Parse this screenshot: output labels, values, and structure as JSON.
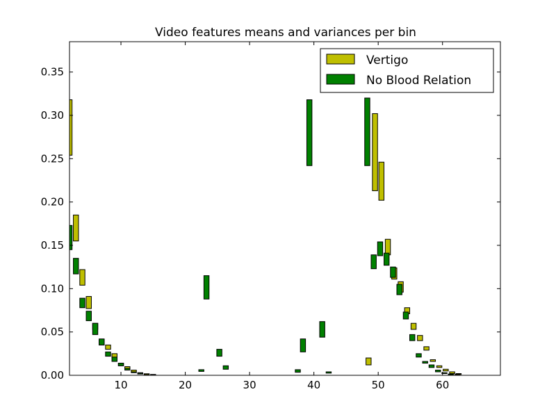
{
  "chart_data": {
    "type": "bar",
    "title": "Video features means and variances per bin",
    "xlabel": "",
    "ylabel": "",
    "xlim": [
      2,
      69
    ],
    "ylim": [
      0,
      0.385
    ],
    "xticks": [
      10,
      20,
      30,
      40,
      50,
      60
    ],
    "yticks": [
      0.0,
      0.05,
      0.1,
      0.15,
      0.2,
      0.25,
      0.3,
      0.35
    ],
    "xtick_labels": [
      "10",
      "20",
      "30",
      "40",
      "50",
      "60"
    ],
    "ytick_labels": [
      "0.00",
      "0.05",
      "0.10",
      "0.15",
      "0.20",
      "0.25",
      "0.30",
      "0.35"
    ],
    "grid": false,
    "legend_position": "top-right",
    "bar_width": 0.8,
    "series": [
      {
        "name": "Vertigo",
        "color": "#bfbf00",
        "bars": [
          {
            "x": 2.0,
            "low": 0.254,
            "high": 0.318
          },
          {
            "x": 3.0,
            "low": 0.155,
            "high": 0.185
          },
          {
            "x": 4.0,
            "low": 0.104,
            "high": 0.122
          },
          {
            "x": 5.0,
            "low": 0.077,
            "high": 0.091
          },
          {
            "x": 6.0,
            "low": 0.053,
            "high": 0.06
          },
          {
            "x": 7.0,
            "low": 0.035,
            "high": 0.041
          },
          {
            "x": 8.0,
            "low": 0.03,
            "high": 0.035
          },
          {
            "x": 9.0,
            "low": 0.02,
            "high": 0.025
          },
          {
            "x": 10.0,
            "low": 0.011,
            "high": 0.014
          },
          {
            "x": 11.0,
            "low": 0.008,
            "high": 0.01
          },
          {
            "x": 12.0,
            "low": 0.004,
            "high": 0.006
          },
          {
            "x": 13.0,
            "low": 0.002,
            "high": 0.003
          },
          {
            "x": 14.0,
            "low": 0.0008,
            "high": 0.0018
          },
          {
            "x": 15.0,
            "low": 0.0003,
            "high": 0.001
          },
          {
            "x": 48.5,
            "low": 0.012,
            "high": 0.02
          },
          {
            "x": 49.5,
            "low": 0.213,
            "high": 0.302
          },
          {
            "x": 50.5,
            "low": 0.202,
            "high": 0.246
          },
          {
            "x": 51.5,
            "low": 0.139,
            "high": 0.157
          },
          {
            "x": 52.5,
            "low": 0.111,
            "high": 0.124
          },
          {
            "x": 53.5,
            "low": 0.096,
            "high": 0.108
          },
          {
            "x": 54.5,
            "low": 0.071,
            "high": 0.078
          },
          {
            "x": 55.5,
            "low": 0.053,
            "high": 0.06
          },
          {
            "x": 56.5,
            "low": 0.04,
            "high": 0.046
          },
          {
            "x": 57.5,
            "low": 0.029,
            "high": 0.033
          },
          {
            "x": 58.5,
            "low": 0.016,
            "high": 0.018
          },
          {
            "x": 59.5,
            "low": 0.009,
            "high": 0.011
          },
          {
            "x": 60.5,
            "low": 0.005,
            "high": 0.007
          },
          {
            "x": 61.5,
            "low": 0.002,
            "high": 0.004
          },
          {
            "x": 62.5,
            "low": 0.001,
            "high": 0.002
          }
        ]
      },
      {
        "name": "No Blood Relation",
        "color": "#008000",
        "bars": [
          {
            "x": 2.0,
            "low": 0.145,
            "high": 0.173
          },
          {
            "x": 3.0,
            "low": 0.117,
            "high": 0.135
          },
          {
            "x": 4.0,
            "low": 0.078,
            "high": 0.089
          },
          {
            "x": 5.0,
            "low": 0.063,
            "high": 0.074
          },
          {
            "x": 6.0,
            "low": 0.047,
            "high": 0.06
          },
          {
            "x": 7.0,
            "low": 0.035,
            "high": 0.042
          },
          {
            "x": 8.0,
            "low": 0.022,
            "high": 0.027
          },
          {
            "x": 9.0,
            "low": 0.016,
            "high": 0.021
          },
          {
            "x": 10.0,
            "low": 0.011,
            "high": 0.014
          },
          {
            "x": 11.0,
            "low": 0.006,
            "high": 0.008
          },
          {
            "x": 12.0,
            "low": 0.003,
            "high": 0.004
          },
          {
            "x": 13.0,
            "low": 0.0015,
            "high": 0.0025
          },
          {
            "x": 22.5,
            "low": 0.0045,
            "high": 0.0065
          },
          {
            "x": 23.3,
            "low": 0.088,
            "high": 0.115
          },
          {
            "x": 25.3,
            "low": 0.022,
            "high": 0.03
          },
          {
            "x": 26.3,
            "low": 0.007,
            "high": 0.011
          },
          {
            "x": 37.5,
            "low": 0.0035,
            "high": 0.0065
          },
          {
            "x": 38.3,
            "low": 0.027,
            "high": 0.042
          },
          {
            "x": 39.3,
            "low": 0.242,
            "high": 0.318
          },
          {
            "x": 41.3,
            "low": 0.044,
            "high": 0.062
          },
          {
            "x": 42.3,
            "low": 0.0025,
            "high": 0.004
          },
          {
            "x": 48.3,
            "low": 0.242,
            "high": 0.32
          },
          {
            "x": 49.3,
            "low": 0.123,
            "high": 0.139
          },
          {
            "x": 50.3,
            "low": 0.138,
            "high": 0.154
          },
          {
            "x": 51.3,
            "low": 0.127,
            "high": 0.141
          },
          {
            "x": 52.3,
            "low": 0.113,
            "high": 0.125
          },
          {
            "x": 53.3,
            "low": 0.093,
            "high": 0.105
          },
          {
            "x": 54.3,
            "low": 0.065,
            "high": 0.073
          },
          {
            "x": 55.3,
            "low": 0.04,
            "high": 0.047
          },
          {
            "x": 56.3,
            "low": 0.021,
            "high": 0.025
          },
          {
            "x": 57.3,
            "low": 0.014,
            "high": 0.016
          },
          {
            "x": 58.3,
            "low": 0.009,
            "high": 0.012
          },
          {
            "x": 59.3,
            "low": 0.004,
            "high": 0.006
          },
          {
            "x": 60.3,
            "low": 0.002,
            "high": 0.003
          },
          {
            "x": 61.3,
            "low": 0.0005,
            "high": 0.0015
          },
          {
            "x": 62.3,
            "low": 0.0003,
            "high": 0.001
          }
        ]
      }
    ]
  }
}
